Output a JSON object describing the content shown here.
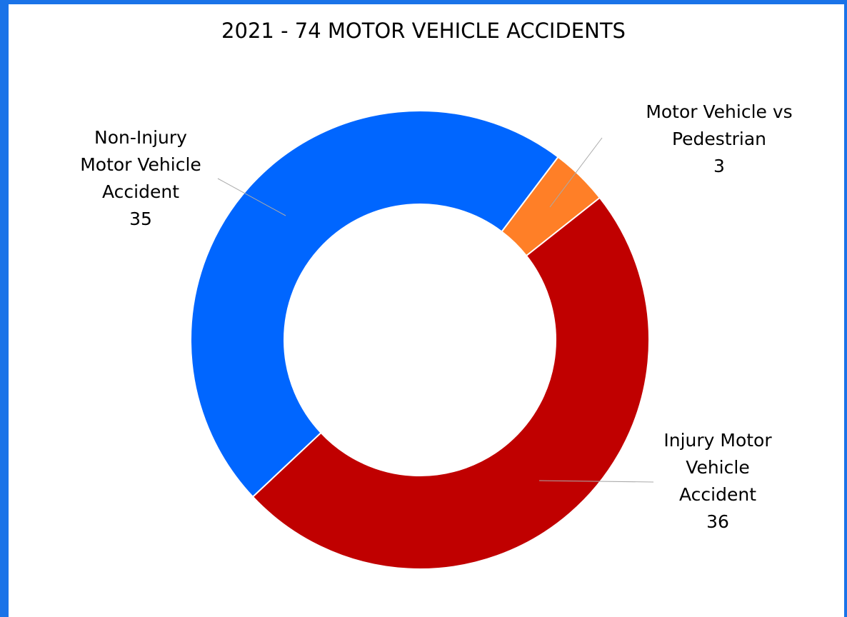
{
  "chart_data": {
    "type": "donut",
    "title": "2021 - 74 MOTOR VEHICLE ACCIDENTS",
    "categories": [
      "Non-Injury Motor Vehicle Accident",
      "Motor Vehicle vs Pedestrian",
      "Injury Motor Vehicle Accident"
    ],
    "values": [
      35,
      3,
      36
    ],
    "colors": [
      "#0066ff",
      "#ff7f27",
      "#c00000"
    ]
  }
}
